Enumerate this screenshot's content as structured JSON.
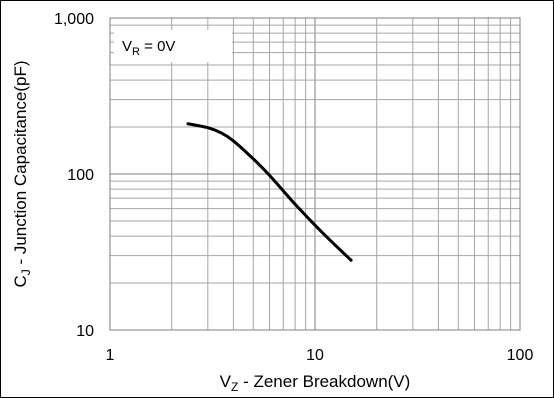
{
  "chart_data": {
    "type": "line",
    "x_scale": "log",
    "y_scale": "log",
    "xlim": [
      1,
      100
    ],
    "ylim": [
      10,
      1000
    ],
    "x_ticks": [
      {
        "value": 1,
        "label": "1"
      },
      {
        "value": 10,
        "label": "10"
      },
      {
        "value": 100,
        "label": "100"
      }
    ],
    "y_ticks": [
      {
        "value": 10,
        "label": "10"
      },
      {
        "value": 100,
        "label": "100"
      },
      {
        "value": 1000,
        "label": "1,000"
      }
    ],
    "xlabel": {
      "main": "V",
      "sub": "Z",
      "rest": " - Zener Breakdown(V)"
    },
    "ylabel": {
      "main": "C",
      "sub": "J",
      "rest": " - Junction Capacitance(pF)"
    },
    "annotation": {
      "main": "V",
      "sub": "R",
      "rest": " = 0V"
    },
    "grid": true,
    "series": [
      {
        "color": "#000000",
        "points": [
          {
            "x": 2.4,
            "y": 210
          },
          {
            "x": 3.0,
            "y": 198
          },
          {
            "x": 3.5,
            "y": 183
          },
          {
            "x": 4.0,
            "y": 163
          },
          {
            "x": 5.0,
            "y": 125
          },
          {
            "x": 6.0,
            "y": 98
          },
          {
            "x": 7.0,
            "y": 78
          },
          {
            "x": 8.0,
            "y": 64
          },
          {
            "x": 10.0,
            "y": 47
          },
          {
            "x": 12.0,
            "y": 37
          },
          {
            "x": 15.0,
            "y": 28
          }
        ]
      }
    ]
  }
}
